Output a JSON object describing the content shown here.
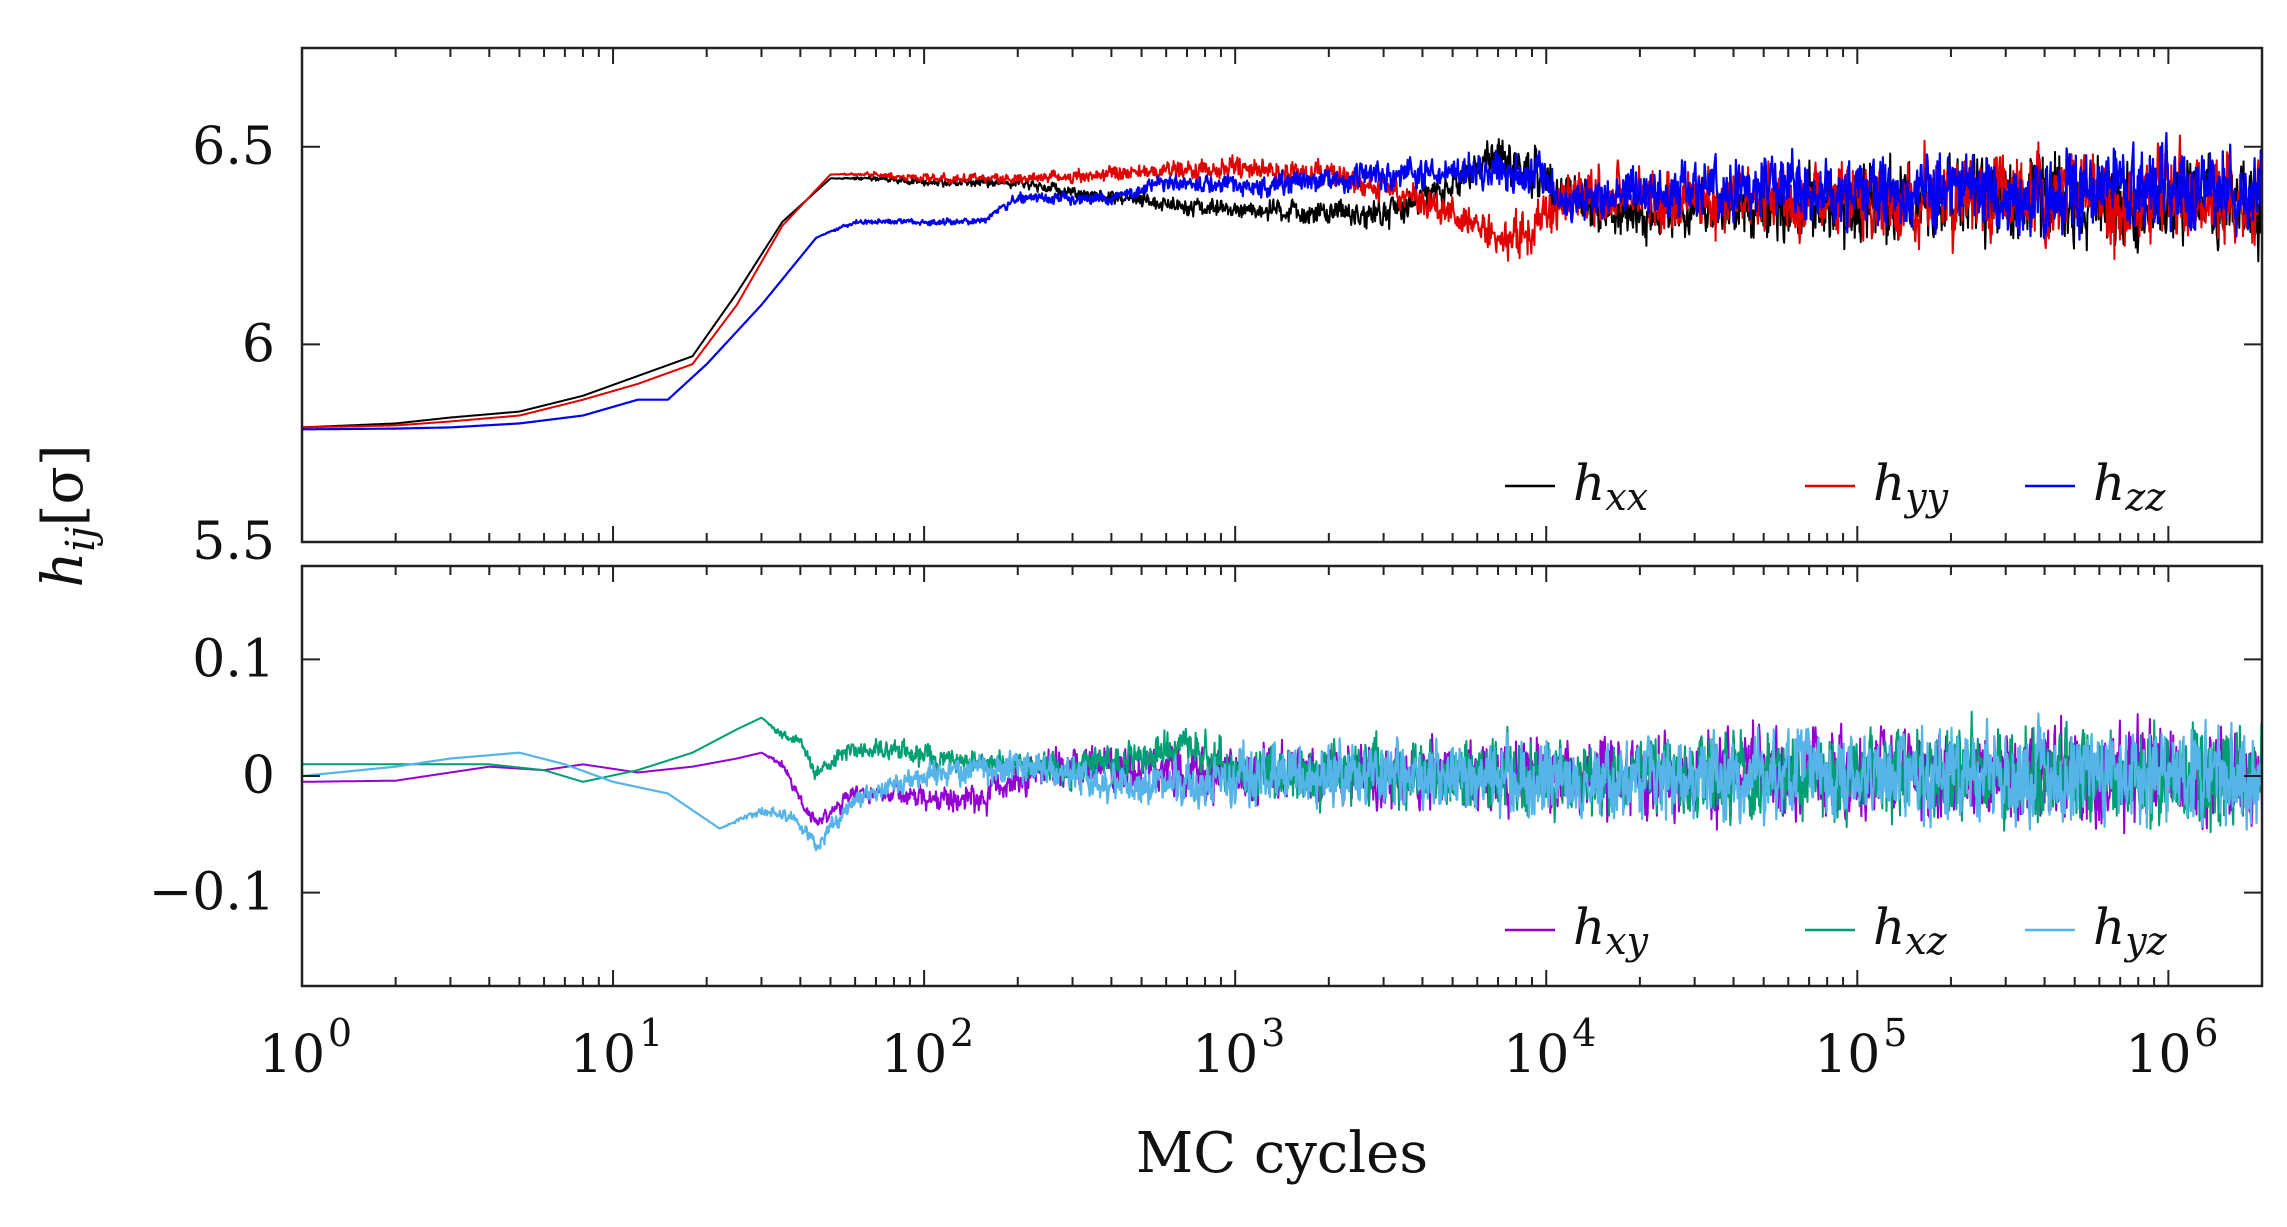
{
  "chart_data": [
    {
      "type": "line",
      "panel": "top",
      "xscale": "log",
      "xlim": [
        1,
        2000000
      ],
      "ylim": [
        5.5,
        6.75
      ],
      "ylabel": "h_ij[σ]",
      "grid": false,
      "legend_position": "bottom-right",
      "yticks": [
        {
          "value": 5.5,
          "label": "5.5"
        },
        {
          "value": 6,
          "label": "6"
        },
        {
          "value": 6.5,
          "label": "6.5"
        }
      ],
      "series": [
        {
          "name": "h_xx",
          "legend_base": "h",
          "legend_sub": "xx",
          "color": "#000000",
          "x": [
            1,
            2,
            3,
            5,
            8,
            12,
            18,
            25,
            35,
            50,
            70,
            100,
            200,
            400,
            1000,
            2000,
            3000,
            5000,
            6500,
            8000,
            10000,
            15000,
            20000,
            50000,
            100000,
            300000,
            1000000,
            2000000
          ],
          "y": [
            5.79,
            5.8,
            5.815,
            5.83,
            5.87,
            5.92,
            5.97,
            6.13,
            6.31,
            6.42,
            6.42,
            6.41,
            6.41,
            6.37,
            6.34,
            6.33,
            6.33,
            6.4,
            6.48,
            6.45,
            6.42,
            6.34,
            6.32,
            6.35,
            6.36,
            6.37,
            6.37,
            6.37
          ],
          "noise": [
            0,
            0,
            0,
            0,
            0,
            0,
            0,
            0,
            0,
            0,
            0.005,
            0.008,
            0.01,
            0.015,
            0.02,
            0.025,
            0.03,
            0.035,
            0.04,
            0.045,
            0.05,
            0.05,
            0.06,
            0.07,
            0.08,
            0.09,
            0.09,
            0.09
          ]
        },
        {
          "name": "h_yy",
          "legend_base": "h",
          "legend_sub": "yy",
          "color": "#e00000",
          "x": [
            1,
            2,
            3,
            5,
            8,
            12,
            18,
            25,
            35,
            50,
            70,
            100,
            200,
            400,
            700,
            1000,
            2000,
            4000,
            6000,
            7500,
            9000,
            12000,
            20000,
            50000,
            100000,
            300000,
            1000000,
            2000000
          ],
          "y": [
            5.79,
            5.795,
            5.805,
            5.82,
            5.86,
            5.9,
            5.95,
            6.1,
            6.3,
            6.43,
            6.43,
            6.42,
            6.42,
            6.43,
            6.44,
            6.45,
            6.43,
            6.36,
            6.3,
            6.26,
            6.3,
            6.38,
            6.36,
            6.36,
            6.37,
            6.37,
            6.37,
            6.36
          ],
          "noise": [
            0,
            0,
            0,
            0,
            0,
            0,
            0,
            0,
            0,
            0,
            0.005,
            0.008,
            0.01,
            0.015,
            0.02,
            0.02,
            0.025,
            0.03,
            0.04,
            0.045,
            0.05,
            0.05,
            0.06,
            0.07,
            0.08,
            0.09,
            0.09,
            0.09
          ]
        },
        {
          "name": "h_zz",
          "legend_base": "h",
          "legend_sub": "zz",
          "color": "#0000ee",
          "x": [
            1,
            2,
            3,
            5,
            8,
            12,
            15,
            20,
            30,
            45,
            60,
            100,
            150,
            200,
            400,
            600,
            1000,
            2000,
            5000,
            9000,
            12000,
            20000,
            50000,
            100000,
            300000,
            1000000,
            2000000
          ],
          "y": [
            5.785,
            5.787,
            5.79,
            5.8,
            5.82,
            5.86,
            5.86,
            5.95,
            6.1,
            6.27,
            6.31,
            6.31,
            6.31,
            6.37,
            6.37,
            6.41,
            6.4,
            6.42,
            6.44,
            6.44,
            6.35,
            6.39,
            6.4,
            6.39,
            6.39,
            6.39,
            6.39
          ],
          "noise": [
            0,
            0,
            0,
            0,
            0,
            0,
            0,
            0,
            0,
            0,
            0.005,
            0.006,
            0.008,
            0.01,
            0.012,
            0.015,
            0.02,
            0.025,
            0.03,
            0.04,
            0.045,
            0.05,
            0.06,
            0.07,
            0.08,
            0.09,
            0.09
          ]
        }
      ]
    },
    {
      "type": "line",
      "panel": "bottom",
      "xscale": "log",
      "xlim": [
        1,
        2000000
      ],
      "ylim": [
        -0.18,
        0.18
      ],
      "xlabel": "MC cycles",
      "grid": false,
      "legend_position": "bottom-right",
      "yticks": [
        {
          "value": -0.1,
          "label": "−0.1"
        },
        {
          "value": 0,
          "label": "0"
        },
        {
          "value": 0.1,
          "label": "0.1"
        }
      ],
      "xticks": [
        {
          "value": 1,
          "base": "10",
          "exp": "0"
        },
        {
          "value": 10,
          "base": "10",
          "exp": "1"
        },
        {
          "value": 100,
          "base": "10",
          "exp": "2"
        },
        {
          "value": 1000,
          "base": "10",
          "exp": "3"
        },
        {
          "value": 10000,
          "base": "10",
          "exp": "4"
        },
        {
          "value": 100000,
          "base": "10",
          "exp": "5"
        },
        {
          "value": 1000000,
          "base": "10",
          "exp": "6"
        }
      ],
      "series": [
        {
          "name": "h_xy",
          "legend_base": "h",
          "legend_sub": "xy",
          "color": "#9400d3",
          "x": [
            1,
            2,
            4,
            6,
            8,
            12,
            18,
            25,
            30,
            35,
            40,
            45,
            60,
            80,
            100,
            150,
            200,
            300,
            1000,
            10000,
            100000,
            1000000,
            2000000
          ],
          "y": [
            -0.005,
            -0.004,
            0.008,
            0.005,
            0.01,
            0.003,
            0.008,
            0.015,
            0.02,
            0.01,
            -0.02,
            -0.04,
            -0.015,
            -0.015,
            -0.02,
            -0.02,
            0.0,
            0.01,
            0.005,
            0.0,
            0.0,
            0.0,
            0.0
          ],
          "noise": [
            0,
            0,
            0,
            0,
            0,
            0,
            0,
            0,
            0,
            0.003,
            0.004,
            0.005,
            0.006,
            0.007,
            0.008,
            0.01,
            0.012,
            0.014,
            0.02,
            0.025,
            0.03,
            0.035,
            0.035
          ]
        },
        {
          "name": "h_xz",
          "legend_base": "h",
          "legend_sub": "xz",
          "color": "#009e73",
          "x": [
            1,
            2,
            4,
            6,
            8,
            12,
            18,
            25,
            30,
            35,
            40,
            45,
            55,
            80,
            120,
            200,
            300,
            700,
            1000,
            10000,
            100000,
            1000000,
            2000000
          ],
          "y": [
            0.01,
            0.01,
            0.01,
            0.005,
            -0.005,
            0.005,
            0.02,
            0.04,
            0.05,
            0.035,
            0.03,
            0.0,
            0.02,
            0.025,
            0.01,
            0.01,
            0.005,
            0.025,
            0.005,
            0.0,
            0.0,
            0.0,
            0.0
          ],
          "noise": [
            0,
            0,
            0,
            0,
            0,
            0,
            0,
            0,
            0,
            0.003,
            0.004,
            0.005,
            0.006,
            0.007,
            0.008,
            0.01,
            0.012,
            0.014,
            0.02,
            0.025,
            0.03,
            0.035,
            0.035
          ]
        },
        {
          "name": "h_yz",
          "legend_base": "h",
          "legend_sub": "yz",
          "color": "#56b4e9",
          "x": [
            1,
            2,
            3,
            5,
            7,
            10,
            15,
            22,
            30,
            38,
            45,
            60,
            100,
            200,
            500,
            1000,
            10000,
            100000,
            1000000,
            2000000
          ],
          "y": [
            0.0,
            0.008,
            0.015,
            0.02,
            0.01,
            -0.005,
            -0.015,
            -0.045,
            -0.03,
            -0.035,
            -0.06,
            -0.02,
            0.0,
            0.01,
            -0.01,
            0.0,
            0.0,
            0.0,
            0.0,
            0.0
          ],
          "noise": [
            0,
            0,
            0,
            0,
            0,
            0,
            0,
            0,
            0.003,
            0.004,
            0.005,
            0.006,
            0.008,
            0.012,
            0.015,
            0.02,
            0.025,
            0.03,
            0.035,
            0.035
          ]
        }
      ]
    }
  ]
}
